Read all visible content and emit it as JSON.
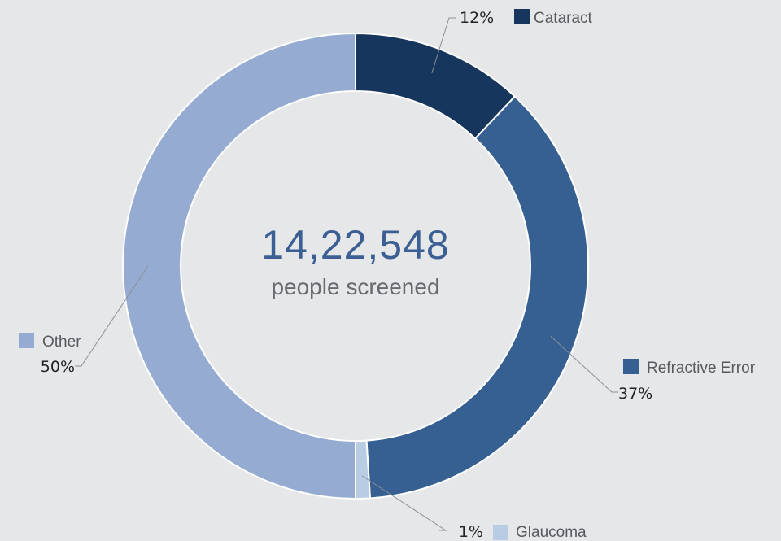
{
  "chart_data": {
    "type": "pie",
    "donut": true,
    "center": {
      "value": "14,22,548",
      "caption": "people screened"
    },
    "series": [
      {
        "name": "Cataract",
        "value": 12,
        "label": "12%",
        "color": "#17365d"
      },
      {
        "name": "Refractive Error",
        "value": 37,
        "label": "37%",
        "color": "#366092"
      },
      {
        "name": "Glaucoma",
        "value": 1,
        "label": "1%",
        "color": "#b8cce4"
      },
      {
        "name": "Other",
        "value": 50,
        "label": "50%",
        "color": "#95abd2"
      }
    ],
    "start_angle_deg": 0,
    "direction": "clockwise"
  }
}
